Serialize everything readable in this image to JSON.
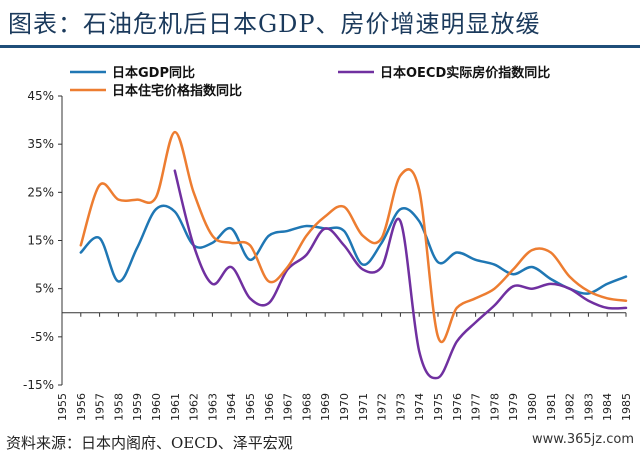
{
  "title": "图表：石油危机后日本GDP、房价增速明显放缓",
  "footer": {
    "source_note": "资料来源：日本内阁府、OECD、泽平宏观",
    "watermark": "www.365jz.com"
  },
  "chart_data": {
    "type": "line",
    "title": "",
    "xlabel": "",
    "ylabel": "",
    "ylim": [
      -15,
      45
    ],
    "yticks": [
      -15,
      -5,
      5,
      15,
      25,
      35,
      45
    ],
    "ytick_labels": [
      "-15%",
      "-5%",
      "5%",
      "15%",
      "25%",
      "35%",
      "45%"
    ],
    "x": [
      1955,
      1956,
      1957,
      1958,
      1959,
      1960,
      1961,
      1962,
      1963,
      1964,
      1965,
      1966,
      1967,
      1968,
      1969,
      1970,
      1971,
      1972,
      1973,
      1974,
      1975,
      1976,
      1977,
      1978,
      1979,
      1980,
      1981,
      1982,
      1983,
      1984,
      1985
    ],
    "xtick_labels": [
      "1955",
      "1956",
      "1957",
      "1958",
      "1959",
      "1960",
      "1961",
      "1962",
      "1963",
      "1964",
      "1965",
      "1966",
      "1967",
      "1968",
      "1969",
      "1970",
      "1971",
      "1972",
      "1973",
      "1974",
      "1975",
      "1976",
      "1977",
      "1978",
      "1979",
      "1980",
      "1981",
      "1982",
      "1983",
      "1984",
      "1985"
    ],
    "grid": false,
    "legend_position": "top",
    "series": [
      {
        "name": "日本GDP同比",
        "color": "#1f77b4",
        "x": [
          1956,
          1957,
          1958,
          1959,
          1960,
          1961,
          1962,
          1963,
          1964,
          1965,
          1966,
          1967,
          1968,
          1969,
          1970,
          1971,
          1972,
          1973,
          1974,
          1975,
          1976,
          1977,
          1978,
          1979,
          1980,
          1981,
          1982,
          1983,
          1984,
          1985
        ],
        "values": [
          12.5,
          15.5,
          6.5,
          13.5,
          21.5,
          21.0,
          14.0,
          14.5,
          17.5,
          11.0,
          16.0,
          17.0,
          18.0,
          17.5,
          17.0,
          10.0,
          14.5,
          21.5,
          19.0,
          10.5,
          12.5,
          11.0,
          10.0,
          8.0,
          9.5,
          7.0,
          5.0,
          4.0,
          6.0,
          7.5
        ]
      },
      {
        "name": "日本OECD实际房价指数同比",
        "color": "#7030a0",
        "x": [
          1961,
          1962,
          1963,
          1964,
          1965,
          1966,
          1967,
          1968,
          1969,
          1970,
          1971,
          1972,
          1973,
          1974,
          1975,
          1976,
          1977,
          1978,
          1979,
          1980,
          1981,
          1982,
          1983,
          1984,
          1985
        ],
        "values": [
          29.5,
          14.0,
          6.0,
          9.5,
          3.0,
          2.0,
          9.0,
          12.0,
          17.5,
          14.0,
          9.0,
          9.5,
          19.0,
          -8.0,
          -13.5,
          -6.0,
          -2.0,
          1.5,
          5.5,
          5.0,
          6.0,
          5.0,
          2.5,
          1.0,
          1.0
        ]
      },
      {
        "name": "日本住宅价格指数同比",
        "color": "#ed7d31",
        "x": [
          1956,
          1957,
          1958,
          1959,
          1960,
          1961,
          1962,
          1963,
          1964,
          1965,
          1966,
          1967,
          1968,
          1969,
          1970,
          1971,
          1972,
          1973,
          1974,
          1975,
          1976,
          1977,
          1978,
          1979,
          1980,
          1981,
          1982,
          1983,
          1984,
          1985
        ],
        "values": [
          14.0,
          26.5,
          23.5,
          23.5,
          24.0,
          37.5,
          25.0,
          16.0,
          14.5,
          14.0,
          6.5,
          9.5,
          16.0,
          20.0,
          22.0,
          16.0,
          15.5,
          28.5,
          25.5,
          -5.0,
          1.0,
          3.0,
          5.0,
          9.0,
          13.0,
          12.5,
          7.5,
          4.5,
          3.0,
          2.5
        ]
      }
    ]
  }
}
